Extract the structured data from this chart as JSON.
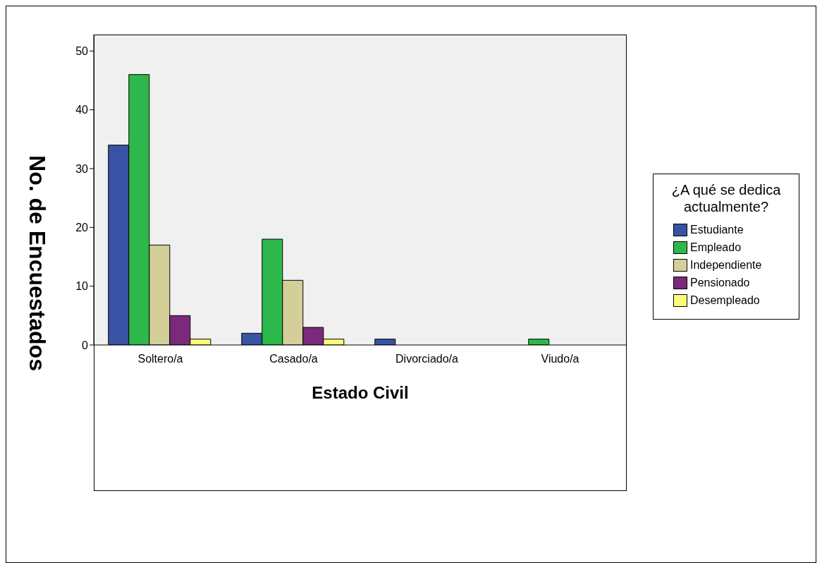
{
  "chart_data": {
    "type": "bar",
    "xlabel": "Estado Civil",
    "ylabel": "No. de Encuestados",
    "legend_title": "¿A qué se dedica actualmente?",
    "categories": [
      "Soltero/a",
      "Casado/a",
      "Divorciado/a",
      "Viudo/a"
    ],
    "series": [
      {
        "name": "Estudiante",
        "color": "#3953a4",
        "values": [
          34,
          2,
          1,
          0
        ]
      },
      {
        "name": "Empleado",
        "color": "#2db84c",
        "values": [
          46,
          18,
          0,
          1
        ]
      },
      {
        "name": "Independiente",
        "color": "#d4cf98",
        "values": [
          17,
          11,
          0,
          0
        ]
      },
      {
        "name": "Pensionado",
        "color": "#7b2a7b",
        "values": [
          5,
          3,
          0,
          0
        ]
      },
      {
        "name": "Desempleado",
        "color": "#fbfb7a",
        "values": [
          1,
          1,
          0,
          0
        ]
      }
    ],
    "ylim": [
      0,
      52.8
    ],
    "yticks": [
      0,
      10,
      20,
      30,
      40,
      50
    ],
    "grid": false,
    "legend": "right"
  }
}
